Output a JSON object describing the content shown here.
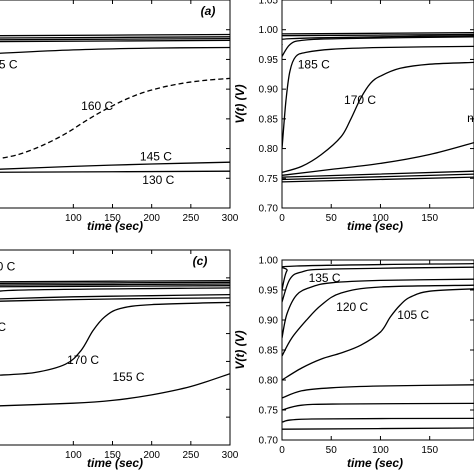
{
  "chart_data": [
    {
      "type": "line",
      "panel_label": "(a)",
      "xlabel": "time (sec)",
      "ylabel": "",
      "xlim": [
        0,
        300
      ],
      "ylim": [
        0.7,
        1.05
      ],
      "xticks": [
        "100",
        "150",
        "200",
        "250",
        "300"
      ],
      "yticks": [],
      "annotations": [
        {
          "text": "5 C",
          "x": 5,
          "y": 0.935
        },
        {
          "text": "160 C",
          "x": 110,
          "y": 0.865
        },
        {
          "text": "145 C",
          "x": 185,
          "y": 0.78
        },
        {
          "text": "130 C",
          "x": 188,
          "y": 0.74
        }
      ],
      "series": [
        {
          "x": [
            0,
            300
          ],
          "y": [
            0.99,
            0.992
          ]
        },
        {
          "x": [
            0,
            300
          ],
          "y": [
            0.986,
            0.988
          ]
        },
        {
          "x": [
            0,
            300
          ],
          "y": [
            0.983,
            0.985
          ]
        },
        {
          "x": [
            0,
            300
          ],
          "y": [
            0.98,
            0.982
          ]
        },
        {
          "x": [
            0,
            100,
            200,
            300
          ],
          "y": [
            0.96,
            0.966,
            0.969,
            0.97
          ]
        },
        {
          "dashed": true,
          "x": [
            0,
            30,
            60,
            90,
            120,
            150,
            180,
            210,
            240,
            270,
            300
          ],
          "y": [
            0.782,
            0.79,
            0.805,
            0.825,
            0.85,
            0.872,
            0.89,
            0.902,
            0.91,
            0.915,
            0.918
          ]
        },
        {
          "x": [
            0,
            100,
            200,
            300
          ],
          "y": [
            0.765,
            0.77,
            0.774,
            0.777
          ]
        },
        {
          "x": [
            0,
            300
          ],
          "y": [
            0.76,
            0.762
          ]
        }
      ]
    },
    {
      "type": "line",
      "panel_label": "",
      "xlabel": "time (sec)",
      "ylabel": "V(t) (V)",
      "xlim": [
        0,
        195
      ],
      "ylim": [
        0.7,
        1.05
      ],
      "xticks": [
        "0",
        "50",
        "100",
        "150"
      ],
      "yticks": [
        "0.70",
        "0.75",
        "0.80",
        "0.85",
        "0.90",
        "0.95",
        "1.00",
        "1.05"
      ],
      "annotations": [
        {
          "text": "185 C",
          "x": 16,
          "y": 0.935
        },
        {
          "text": "170 C",
          "x": 63,
          "y": 0.875
        },
        {
          "text": "n",
          "x": 188,
          "y": 0.845
        }
      ],
      "series": [
        {
          "x": [
            0,
            195
          ],
          "y": [
            0.993,
            0.995
          ]
        },
        {
          "x": [
            0,
            195
          ],
          "y": [
            0.99,
            0.992
          ]
        },
        {
          "x": [
            0,
            10,
            195
          ],
          "y": [
            0.975,
            0.985,
            0.99
          ]
        },
        {
          "x": [
            0,
            8,
            20,
            60,
            195
          ],
          "y": [
            0.955,
            0.975,
            0.982,
            0.985,
            0.988
          ]
        },
        {
          "x": [
            0,
            4,
            8,
            14,
            25,
            50,
            100,
            195
          ],
          "y": [
            0.8,
            0.88,
            0.93,
            0.955,
            0.962,
            0.967,
            0.97,
            0.972
          ]
        },
        {
          "x": [
            0,
            20,
            40,
            60,
            70,
            80,
            90,
            100,
            120,
            150,
            195
          ],
          "y": [
            0.76,
            0.77,
            0.79,
            0.82,
            0.85,
            0.885,
            0.91,
            0.922,
            0.935,
            0.942,
            0.945
          ]
        },
        {
          "x": [
            0,
            50,
            100,
            150,
            195
          ],
          "y": [
            0.755,
            0.765,
            0.775,
            0.79,
            0.81
          ]
        },
        {
          "x": [
            0,
            195
          ],
          "y": [
            0.752,
            0.762
          ]
        },
        {
          "x": [
            0,
            195
          ],
          "y": [
            0.748,
            0.757
          ]
        },
        {
          "x": [
            0,
            195
          ],
          "y": [
            0.744,
            0.752
          ]
        }
      ]
    },
    {
      "type": "line",
      "panel_label": "(c)",
      "xlabel": "time (sec)",
      "ylabel": "",
      "xlim": [
        0,
        300
      ],
      "ylim": [
        0.7,
        1.05
      ],
      "xticks": [
        "100",
        "150",
        "200",
        "250",
        "300"
      ],
      "yticks": [],
      "annotations": [
        {
          "text": "0 C",
          "x": 2,
          "y": 1.013
        },
        {
          "text": "C",
          "x": 3,
          "y": 0.905
        },
        {
          "text": "170 C",
          "x": 92,
          "y": 0.845
        },
        {
          "text": "155 C",
          "x": 150,
          "y": 0.815
        }
      ],
      "series": [
        {
          "x": [
            0,
            300
          ],
          "y": [
            0.993,
            0.995
          ]
        },
        {
          "x": [
            0,
            300
          ],
          "y": [
            0.99,
            0.992
          ]
        },
        {
          "x": [
            0,
            300
          ],
          "y": [
            0.987,
            0.989
          ]
        },
        {
          "x": [
            0,
            300
          ],
          "y": [
            0.984,
            0.986
          ]
        },
        {
          "x": [
            0,
            30,
            300
          ],
          "y": [
            0.97,
            0.978,
            0.982
          ]
        },
        {
          "x": [
            0,
            100,
            200,
            300
          ],
          "y": [
            0.962,
            0.966,
            0.968,
            0.97
          ]
        },
        {
          "x": [
            0,
            100,
            200,
            300
          ],
          "y": [
            0.958,
            0.961,
            0.963,
            0.964
          ]
        },
        {
          "x": [
            0,
            50,
            90,
            110,
            125,
            140,
            160,
            200,
            300
          ],
          "y": [
            0.825,
            0.83,
            0.845,
            0.87,
            0.905,
            0.93,
            0.945,
            0.952,
            0.956
          ]
        },
        {
          "x": [
            0,
            100,
            150,
            200,
            250,
            300
          ],
          "y": [
            0.77,
            0.775,
            0.78,
            0.79,
            0.805,
            0.828
          ]
        }
      ]
    },
    {
      "type": "line",
      "panel_label": "",
      "xlabel": "time (sec)",
      "ylabel": "V(t) (V)",
      "xlim": [
        0,
        195
      ],
      "ylim": [
        0.7,
        1.0
      ],
      "xticks": [
        "0",
        "50",
        "100",
        "150"
      ],
      "yticks": [
        "0.70",
        "0.75",
        "0.80",
        "0.85",
        "0.90",
        "0.95",
        "1.00"
      ],
      "annotations": [
        {
          "text": "135 C",
          "x": 27,
          "y": 0.963
        },
        {
          "text": "120 C",
          "x": 55,
          "y": 0.915
        },
        {
          "text": "105 C",
          "x": 117,
          "y": 0.902
        }
      ],
      "series": [
        {
          "x": [
            0,
            5,
            15,
            195
          ],
          "y": [
            0.95,
            0.982,
            0.99,
            0.994
          ]
        },
        {
          "x": [
            0,
            8,
            20,
            50,
            195
          ],
          "y": [
            0.93,
            0.968,
            0.98,
            0.985,
            0.988
          ]
        },
        {
          "x": [
            0,
            5,
            15,
            30,
            50,
            100,
            195
          ],
          "y": [
            0.87,
            0.91,
            0.942,
            0.955,
            0.962,
            0.966,
            0.968
          ]
        },
        {
          "x": [
            0,
            10,
            25,
            40,
            60,
            100,
            195
          ],
          "y": [
            0.84,
            0.87,
            0.9,
            0.925,
            0.945,
            0.955,
            0.958
          ]
        },
        {
          "x": [
            0,
            20,
            40,
            60,
            80,
            100,
            110,
            120,
            130,
            150,
            195
          ],
          "y": [
            0.8,
            0.82,
            0.835,
            0.845,
            0.858,
            0.88,
            0.905,
            0.925,
            0.938,
            0.948,
            0.952
          ]
        },
        {
          "x": [
            0,
            20,
            50,
            100,
            195
          ],
          "y": [
            0.77,
            0.782,
            0.787,
            0.79,
            0.792
          ]
        },
        {
          "x": [
            0,
            20,
            60,
            195
          ],
          "y": [
            0.75,
            0.758,
            0.76,
            0.761
          ]
        },
        {
          "x": [
            0,
            30,
            195
          ],
          "y": [
            0.73,
            0.735,
            0.736
          ]
        },
        {
          "x": [
            0,
            195
          ],
          "y": [
            0.718,
            0.72
          ]
        }
      ]
    }
  ]
}
